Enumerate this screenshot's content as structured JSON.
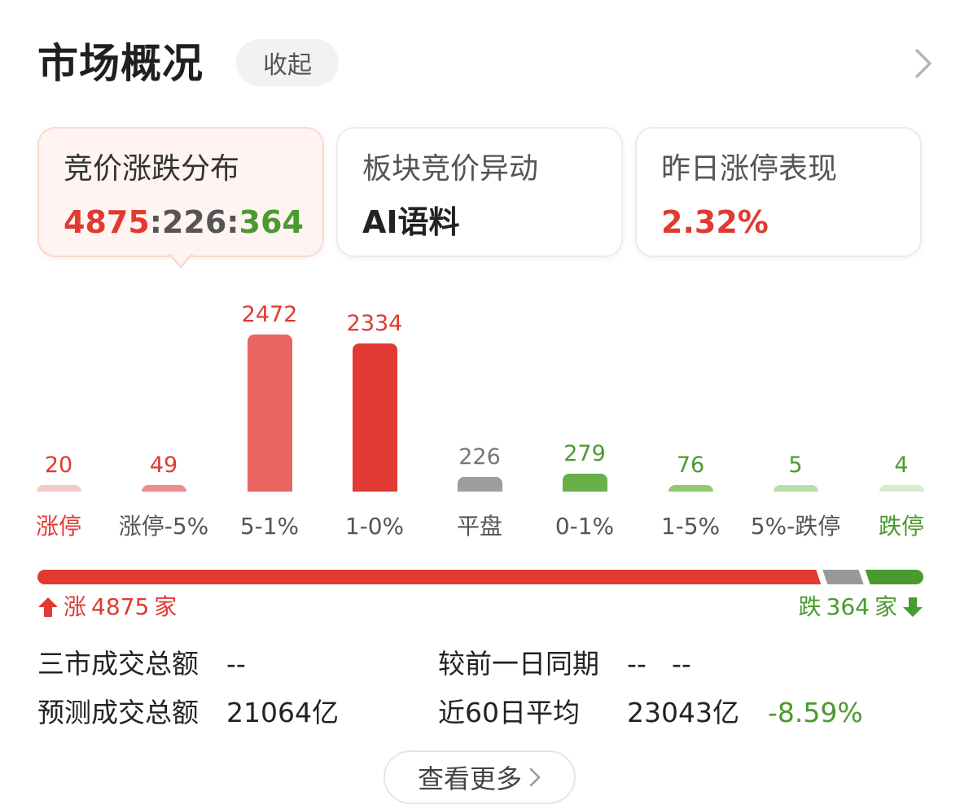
{
  "header": {
    "title": "市场概况",
    "collapse_label": "收起"
  },
  "cards": [
    {
      "label": "竞价涨跌分布",
      "value_up": "4875",
      "sep1": ":",
      "value_flat": "226",
      "sep2": ":",
      "value_down": "364"
    },
    {
      "label": "板块竞价异动",
      "value": "AI语料"
    },
    {
      "label": "昨日涨停表现",
      "value": "2.32%"
    }
  ],
  "colors": {
    "up": "#e03a32",
    "down": "#4a9a2f",
    "flat": "#999999"
  },
  "chart_data": {
    "type": "bar",
    "categories": [
      "涨停",
      "涨停-5%",
      "5-1%",
      "1-0%",
      "平盘",
      "0-1%",
      "1-5%",
      "5%-跌停",
      "跌停"
    ],
    "values": [
      20,
      49,
      2472,
      2334,
      226,
      279,
      76,
      5,
      4
    ],
    "colors": [
      "#f6c9c8",
      "#eb8e8c",
      "#e86562",
      "#e03a32",
      "#9d9d9d",
      "#69b04a",
      "#8fca72",
      "#b9dfa6",
      "#d7eccb"
    ]
  },
  "ratio_bar": {
    "up": 4875,
    "flat": 226,
    "down": 364
  },
  "footer": {
    "up_label": "涨",
    "up_count": "4875",
    "up_unit": "家",
    "down_label": "跌",
    "down_count": "364",
    "down_unit": "家"
  },
  "stats": {
    "total_label": "三市成交总额",
    "total_value": "--",
    "compare_label": "较前一日同期",
    "compare_value1": "--",
    "compare_value2": "--",
    "forecast_label": "预测成交总额",
    "forecast_value": "21064亿",
    "avg_label": "近60日平均",
    "avg_value": "23043亿",
    "avg_change": "-8.59%"
  },
  "more_label": "查看更多"
}
